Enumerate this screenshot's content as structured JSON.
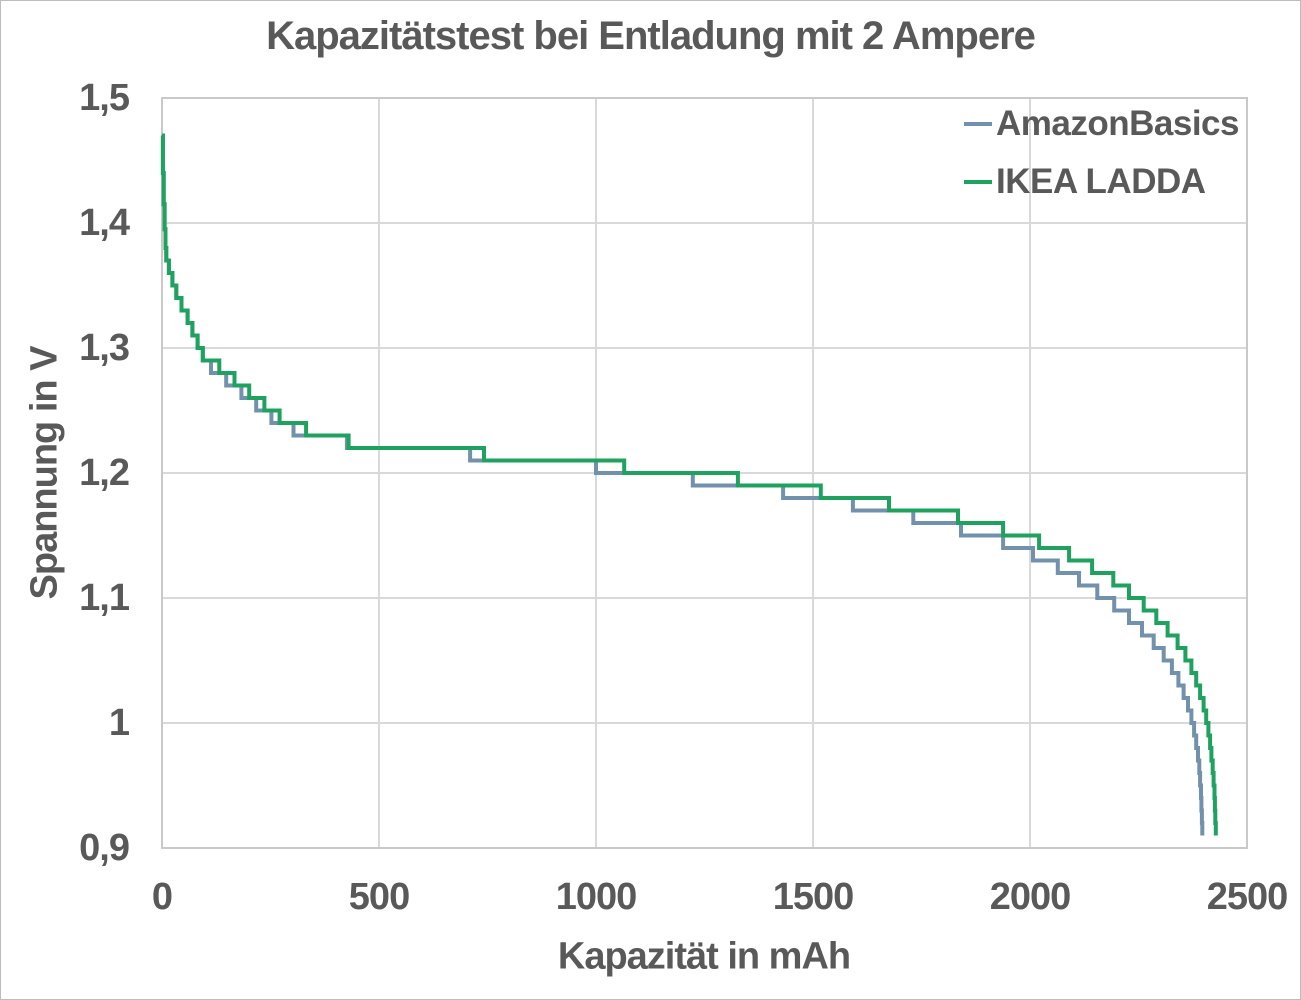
{
  "chart_data": {
    "type": "line",
    "line_shape": "step-after",
    "title": "Kapazitätstest bei Entladung mit 2 Ampere",
    "xlabel": "Kapazität in mAh",
    "ylabel": "Spannung in V",
    "xlim": [
      0,
      2500
    ],
    "ylim": [
      0.9,
      1.5
    ],
    "grid": true,
    "legend_position": "top-right-inside",
    "x_ticks": [
      {
        "v": 0,
        "label": "0"
      },
      {
        "v": 500,
        "label": "500"
      },
      {
        "v": 1000,
        "label": "1000"
      },
      {
        "v": 1500,
        "label": "1500"
      },
      {
        "v": 2000,
        "label": "2000"
      },
      {
        "v": 2500,
        "label": "2500"
      }
    ],
    "y_ticks": [
      {
        "v": 1.5,
        "label": "1,5"
      },
      {
        "v": 1.4,
        "label": "1,4"
      },
      {
        "v": 1.3,
        "label": "1,3"
      },
      {
        "v": 1.2,
        "label": "1,2"
      },
      {
        "v": 1.1,
        "label": "1,1"
      },
      {
        "v": 1.0,
        "label": "1"
      },
      {
        "v": 0.9,
        "label": "0,9"
      }
    ],
    "colors": {
      "text": "#595959",
      "grid": "#d9d9d9",
      "plot_border": "#c9c9c9",
      "amazonbasics": "#7191ad",
      "ikea_ladda": "#1fa15f"
    },
    "series": [
      {
        "name": "AmazonBasics",
        "color": "#7191ad",
        "points": [
          [
            0,
            1.47
          ],
          [
            2,
            1.44
          ],
          [
            4,
            1.415
          ],
          [
            6,
            1.395
          ],
          [
            8,
            1.38
          ],
          [
            10,
            1.37
          ],
          [
            16,
            1.36
          ],
          [
            24,
            1.35
          ],
          [
            33,
            1.34
          ],
          [
            45,
            1.33
          ],
          [
            59,
            1.32
          ],
          [
            70,
            1.31
          ],
          [
            82,
            1.3
          ],
          [
            94,
            1.29
          ],
          [
            113,
            1.28
          ],
          [
            148,
            1.27
          ],
          [
            183,
            1.26
          ],
          [
            217,
            1.25
          ],
          [
            252,
            1.24
          ],
          [
            303,
            1.23
          ],
          [
            426,
            1.22
          ],
          [
            710,
            1.21
          ],
          [
            1000,
            1.2
          ],
          [
            1223,
            1.19
          ],
          [
            1431,
            1.18
          ],
          [
            1592,
            1.17
          ],
          [
            1731,
            1.16
          ],
          [
            1841,
            1.15
          ],
          [
            1938,
            1.14
          ],
          [
            2007,
            1.13
          ],
          [
            2064,
            1.12
          ],
          [
            2113,
            1.11
          ],
          [
            2155,
            1.1
          ],
          [
            2194,
            1.09
          ],
          [
            2228,
            1.08
          ],
          [
            2258,
            1.07
          ],
          [
            2285,
            1.06
          ],
          [
            2308,
            1.05
          ],
          [
            2327,
            1.04
          ],
          [
            2342,
            1.03
          ],
          [
            2354,
            1.02
          ],
          [
            2364,
            1.01
          ],
          [
            2372,
            1.0
          ],
          [
            2378,
            0.99
          ],
          [
            2383,
            0.98
          ],
          [
            2387,
            0.97
          ],
          [
            2390,
            0.96
          ],
          [
            2392,
            0.95
          ],
          [
            2394,
            0.94
          ],
          [
            2395,
            0.93
          ],
          [
            2396,
            0.92
          ],
          [
            2397,
            0.91
          ]
        ]
      },
      {
        "name": "IKEA LADDA",
        "color": "#1fa15f",
        "points": [
          [
            0,
            1.47
          ],
          [
            2,
            1.44
          ],
          [
            4,
            1.415
          ],
          [
            6,
            1.395
          ],
          [
            8,
            1.38
          ],
          [
            10,
            1.37
          ],
          [
            16,
            1.36
          ],
          [
            24,
            1.35
          ],
          [
            33,
            1.34
          ],
          [
            45,
            1.33
          ],
          [
            59,
            1.32
          ],
          [
            70,
            1.31
          ],
          [
            82,
            1.3
          ],
          [
            94,
            1.29
          ],
          [
            132,
            1.28
          ],
          [
            167,
            1.27
          ],
          [
            201,
            1.26
          ],
          [
            236,
            1.25
          ],
          [
            271,
            1.24
          ],
          [
            332,
            1.23
          ],
          [
            430,
            1.22
          ],
          [
            742,
            1.21
          ],
          [
            1065,
            1.2
          ],
          [
            1327,
            1.19
          ],
          [
            1518,
            1.18
          ],
          [
            1675,
            1.17
          ],
          [
            1834,
            1.16
          ],
          [
            1938,
            1.15
          ],
          [
            2021,
            1.14
          ],
          [
            2090,
            1.13
          ],
          [
            2143,
            1.12
          ],
          [
            2192,
            1.11
          ],
          [
            2228,
            1.1
          ],
          [
            2262,
            1.09
          ],
          [
            2291,
            1.08
          ],
          [
            2317,
            1.07
          ],
          [
            2340,
            1.06
          ],
          [
            2358,
            1.05
          ],
          [
            2372,
            1.04
          ],
          [
            2383,
            1.03
          ],
          [
            2392,
            1.02
          ],
          [
            2400,
            1.01
          ],
          [
            2406,
            1.0
          ],
          [
            2411,
            0.99
          ],
          [
            2415,
            0.98
          ],
          [
            2418,
            0.97
          ],
          [
            2421,
            0.96
          ],
          [
            2423,
            0.95
          ],
          [
            2425,
            0.94
          ],
          [
            2426,
            0.93
          ],
          [
            2427,
            0.92
          ],
          [
            2428,
            0.91
          ]
        ]
      }
    ]
  }
}
